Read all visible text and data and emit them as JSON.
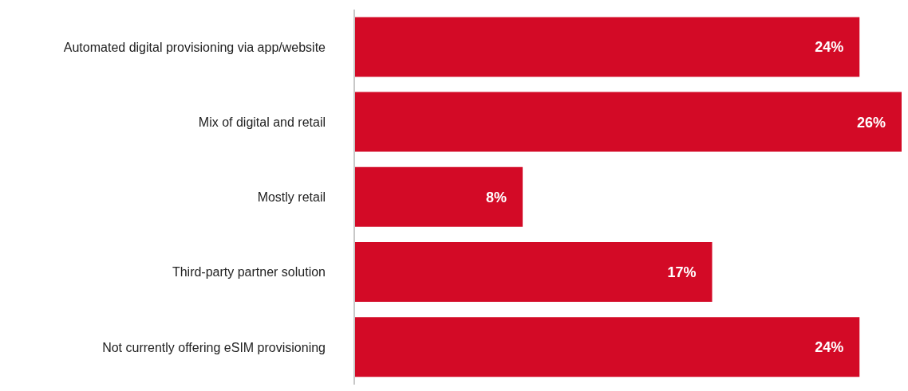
{
  "chart_data": {
    "type": "bar",
    "orientation": "horizontal",
    "categories": [
      "Automated digital provisioning via app/website",
      "Mix of digital and retail",
      "Mostly retail",
      "Third-party partner solution",
      "Not currently offering eSIM provisioning"
    ],
    "values": [
      24,
      26,
      8,
      17,
      24
    ],
    "value_labels": [
      "24%",
      "26%",
      "8%",
      "17%",
      "24%"
    ],
    "color": "#d30a26",
    "grid": false,
    "legend": false
  }
}
